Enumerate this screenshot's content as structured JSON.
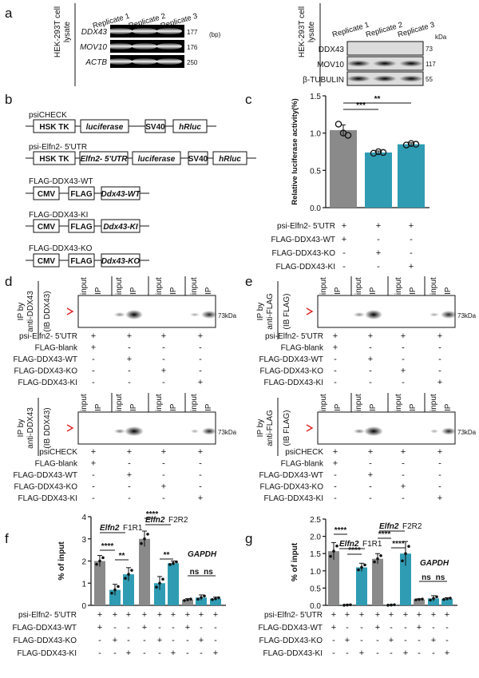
{
  "panel_letters": {
    "a": "a",
    "b": "b",
    "c": "c",
    "d": "d",
    "e": "e",
    "f": "f",
    "g": "g"
  },
  "panel_a": {
    "left_side_label": "HEK-293T cell",
    "left_side_label2": "lysate",
    "right_side_label": "HEK-293T cell",
    "right_side_label2": "lysate",
    "replicates": [
      "Replicate 1",
      "Replicate 2",
      "Replicate 3"
    ],
    "left_unit": "(bp)",
    "right_unit": "kDa",
    "left_rows": [
      {
        "gene": "DDX43",
        "size": "177"
      },
      {
        "gene": "MOV10",
        "size": "176"
      },
      {
        "gene": "ACTB",
        "size": "250"
      }
    ],
    "right_rows": [
      {
        "protein": "DDX43",
        "size": "73"
      },
      {
        "protein": "MOV10",
        "size": "117"
      },
      {
        "protein": "β-TUBULIN",
        "size": "55"
      }
    ]
  },
  "panel_b": {
    "constructs": [
      {
        "name": "psiCHECK",
        "boxes": [
          "HSK TK",
          "luciferase",
          "SV40",
          "hRluc"
        ]
      },
      {
        "name": "psi-Elfn2- 5'UTR",
        "boxes": [
          "HSK TK",
          "Elfn2- 5'UTR",
          "luciferase",
          "SV40",
          "hRluc"
        ]
      },
      {
        "name": "FLAG-DDX43-WT",
        "boxes": [
          "CMV",
          "FLAG",
          "Ddx43-WT"
        ]
      },
      {
        "name": "FLAG-DDX43-KI",
        "boxes": [
          "CMV",
          "FLAG",
          "Ddx43-KI"
        ]
      },
      {
        "name": "FLAG-DDX43-KO",
        "boxes": [
          "CMV",
          "FLAG",
          "Ddx43-KO"
        ]
      }
    ]
  },
  "sign_rows_c": [
    {
      "label": "psi-Elfn2- 5'UTR",
      "signs": [
        "+",
        "+",
        "+"
      ]
    },
    {
      "label": "FLAG-DDX43-WT",
      "signs": [
        "+",
        "-",
        "-"
      ]
    },
    {
      "label": "FLAG-DDX43-KO",
      "signs": [
        "-",
        "+",
        "-"
      ]
    },
    {
      "label": "FLAG-DDX43-KI",
      "signs": [
        "-",
        "-",
        "+"
      ]
    }
  ],
  "blot_labels": {
    "d_ip_by": "IP by",
    "d_ip_antibody": "anti-DDX43",
    "d_ib": "(IB DDX43)",
    "e_ip_by": "IP by",
    "e_ip_antibody": "anti-FLAG",
    "e_ib": "(IB FLAG)",
    "lanes": [
      "input",
      "IP",
      "input",
      "IP",
      "input",
      "IP",
      "input",
      "IP"
    ],
    "size": "73kDa"
  },
  "sign_rows_de_top": [
    {
      "label": "psi-Elfn2- 5'UTR",
      "signs": [
        "+",
        "+",
        "+",
        "+"
      ]
    },
    {
      "label": "FLAG-blank",
      "signs": [
        "+",
        "-",
        "-",
        "-"
      ]
    },
    {
      "label": "FLAG-DDX43-WT",
      "signs": [
        "-",
        "+",
        "-",
        "-"
      ]
    },
    {
      "label": "FLAG-DDX43-KO",
      "signs": [
        "-",
        "-",
        "+",
        "-"
      ]
    },
    {
      "label": "FLAG-DDX43-KI",
      "signs": [
        "-",
        "-",
        "-",
        "+"
      ]
    }
  ],
  "sign_rows_de_bottom": [
    {
      "label": "psiCHECK",
      "signs": [
        "+",
        "+",
        "+",
        "+"
      ]
    },
    {
      "label": "FLAG-blank",
      "signs": [
        "+",
        "-",
        "-",
        "-"
      ]
    },
    {
      "label": "FLAG-DDX43-WT",
      "signs": [
        "-",
        "+",
        "-",
        "-"
      ]
    },
    {
      "label": "FLAG-DDX43-KO",
      "signs": [
        "-",
        "-",
        "+",
        "-"
      ]
    },
    {
      "label": "FLAG-DDX43-KI",
      "signs": [
        "-",
        "-",
        "-",
        "+"
      ]
    }
  ],
  "sign_rows_fg": [
    {
      "label": "psi-Elfn2- 5'UTR",
      "signs": [
        "+",
        "+",
        "+",
        "+",
        "+",
        "+",
        "+",
        "+",
        "+"
      ]
    },
    {
      "label": "FLAG-DDX43-WT",
      "signs": [
        "+",
        "-",
        "-",
        "+",
        "-",
        "-",
        "+",
        "-",
        "-"
      ]
    },
    {
      "label": "FLAG-DDX43-KO",
      "signs": [
        "-",
        "+",
        "-",
        "-",
        "+",
        "-",
        "-",
        "+",
        "-"
      ]
    },
    {
      "label": "FLAG-DDX43-KI",
      "signs": [
        "-",
        "-",
        "+",
        "-",
        "-",
        "+",
        "-",
        "-",
        "+"
      ]
    }
  ],
  "chart_data": [
    {
      "id": "c",
      "type": "bar",
      "ylabel": "Relative luciferase activity(%)",
      "ylim": [
        0,
        1.5
      ],
      "yticks": [
        "0.0",
        "0.5",
        "1.0",
        "1.5"
      ],
      "categories": [
        "WT",
        "KO",
        "KI"
      ],
      "values": [
        1.04,
        0.74,
        0.85
      ],
      "errors": [
        0.07,
        0.02,
        0.02
      ],
      "points": [
        [
          1.12,
          1.0,
          0.97
        ],
        [
          0.73,
          0.75,
          0.74
        ],
        [
          0.84,
          0.86,
          0.85
        ]
      ],
      "colors": [
        "#8a8a8a",
        "#2f9cb3",
        "#2f9cb3"
      ],
      "significance": [
        {
          "from": 0,
          "to": 1,
          "label": "***"
        },
        {
          "from": 0,
          "to": 2,
          "label": "**"
        }
      ]
    },
    {
      "id": "f",
      "type": "bar",
      "ylabel": "% of input",
      "ylim": [
        0,
        4
      ],
      "yticks": [
        "0",
        "1",
        "2",
        "3",
        "4"
      ],
      "groups": [
        {
          "title": "Elfn2",
          "suffix": "F1R1",
          "italic": true
        },
        {
          "title": "Elfn2",
          "suffix": "F2R2",
          "italic": true
        },
        {
          "title": "GAPDH",
          "suffix": "",
          "italic": true
        }
      ],
      "values": [
        2.0,
        0.7,
        1.4,
        3.0,
        1.0,
        1.9,
        0.25,
        0.35,
        0.3
      ],
      "errors": [
        0.25,
        0.25,
        0.3,
        0.35,
        0.3,
        0.1,
        0.05,
        0.12,
        0.07
      ],
      "colors": [
        "#8a8a8a",
        "#2f9cb3",
        "#2f9cb3",
        "#8a8a8a",
        "#2f9cb3",
        "#2f9cb3",
        "#8a8a8a",
        "#2f9cb3",
        "#2f9cb3"
      ],
      "significance": [
        {
          "from": 0,
          "to": 1,
          "label": "****"
        },
        {
          "from": 1,
          "to": 2,
          "label": "**"
        },
        {
          "from": 3,
          "to": 4,
          "label": "****"
        },
        {
          "from": 4,
          "to": 5,
          "label": "**"
        },
        {
          "from": 6,
          "to": 7,
          "label": "ns"
        },
        {
          "from": 7,
          "to": 8,
          "label": "ns"
        }
      ]
    },
    {
      "id": "g",
      "type": "bar",
      "ylabel": "% of input",
      "ylim": [
        0,
        2.5
      ],
      "yticks": [
        "0.0",
        "0.5",
        "1.0",
        "1.5",
        "2.0",
        "2.5"
      ],
      "groups": [
        {
          "title": "Elfn2",
          "suffix": "F1R1",
          "italic": true
        },
        {
          "title": "Elfn2",
          "suffix": "F2R2",
          "italic": true
        },
        {
          "title": "GAPDH",
          "suffix": "",
          "italic": true
        }
      ],
      "values": [
        1.57,
        0.01,
        1.1,
        1.35,
        0.01,
        1.5,
        0.17,
        0.2,
        0.19
      ],
      "errors": [
        0.25,
        0.01,
        0.12,
        0.15,
        0.01,
        0.35,
        0.02,
        0.08,
        0.03
      ],
      "colors": [
        "#8a8a8a",
        "#2f9cb3",
        "#2f9cb3",
        "#8a8a8a",
        "#2f9cb3",
        "#2f9cb3",
        "#8a8a8a",
        "#2f9cb3",
        "#2f9cb3"
      ],
      "significance": [
        {
          "from": 0,
          "to": 1,
          "label": "****"
        },
        {
          "from": 1,
          "to": 2,
          "label": "****"
        },
        {
          "from": 3,
          "to": 4,
          "label": "****"
        },
        {
          "from": 4,
          "to": 5,
          "label": "****"
        },
        {
          "from": 6,
          "to": 7,
          "label": "ns"
        },
        {
          "from": 7,
          "to": 8,
          "label": "ns"
        }
      ]
    }
  ]
}
